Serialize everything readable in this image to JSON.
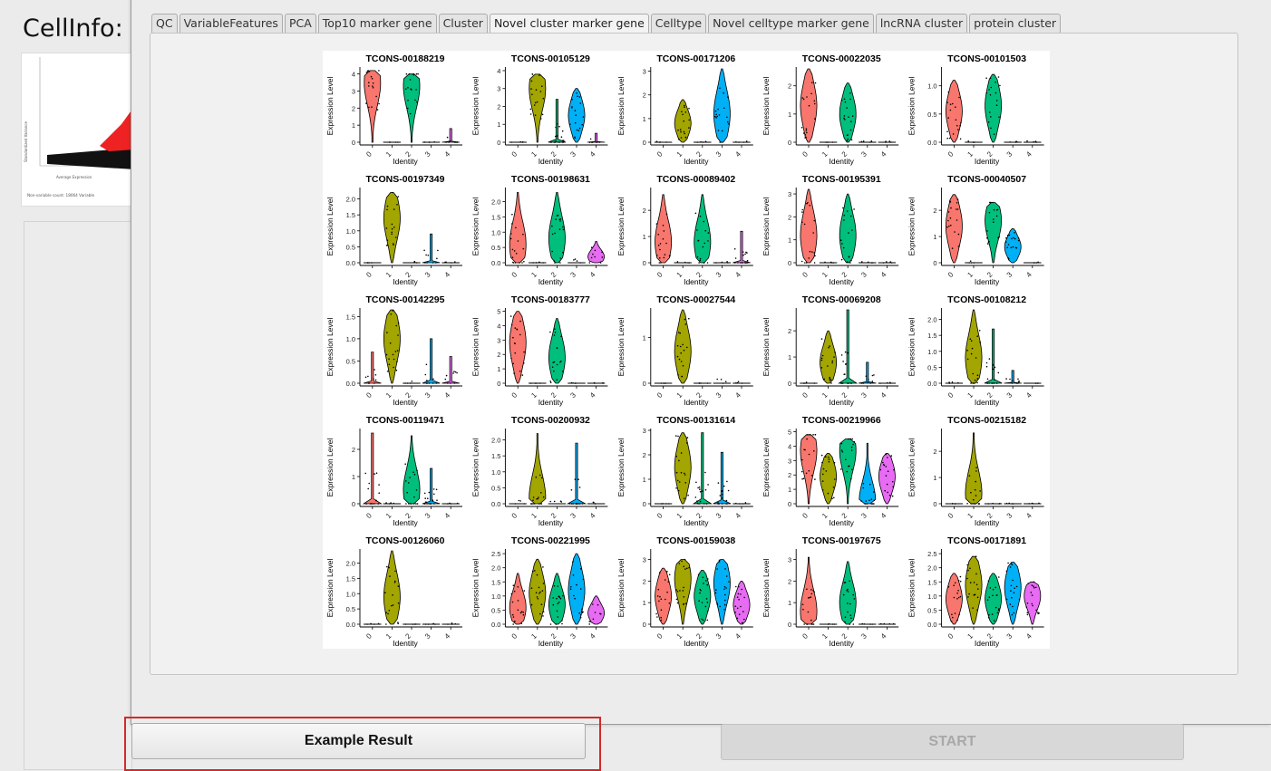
{
  "background": {
    "title": "CellInfo:",
    "thumbnail_caption": "Non-variable count: 18064  Variable"
  },
  "tabs": [
    {
      "label": "QC",
      "active": false
    },
    {
      "label": "VariableFeatures",
      "active": false
    },
    {
      "label": "PCA",
      "active": false
    },
    {
      "label": "Top10 marker gene",
      "active": false
    },
    {
      "label": "Cluster",
      "active": false
    },
    {
      "label": "Novel cluster marker gene",
      "active": true
    },
    {
      "label": "Celltype",
      "active": false
    },
    {
      "label": "Novel celltype marker gene",
      "active": false
    },
    {
      "label": "lncRNA cluster",
      "active": false
    },
    {
      "label": "protein cluster",
      "active": false
    }
  ],
  "buttons": {
    "example": "Example Result",
    "start": "START"
  },
  "colors": {
    "cluster_0": "#F8766D",
    "cluster_1": "#A3A500",
    "cluster_2": "#00BF7D",
    "cluster_3": "#00B0F6",
    "cluster_4": "#E76BF3",
    "highlight": "#d42828"
  },
  "chart_data": {
    "type": "violin",
    "axis_x_label": "Identity",
    "axis_y_label": "Expression Level",
    "identities": [
      "0",
      "1",
      "2",
      "3",
      "4"
    ],
    "panels": [
      {
        "title": "TCONS-00188219",
        "yticks": [
          "0",
          "1",
          "2",
          "3",
          "4"
        ],
        "ymax": 4.3,
        "max": [
          4.2,
          0.1,
          4.0,
          0.1,
          0.8
        ],
        "med": [
          3.5,
          0,
          3.3,
          0,
          0
        ]
      },
      {
        "title": "TCONS-00105129",
        "yticks": [
          "0",
          "1",
          "2",
          "3",
          "4"
        ],
        "ymax": 4.1,
        "max": [
          0.1,
          3.8,
          2.4,
          3.0,
          0.5
        ],
        "med": [
          0,
          3.0,
          0,
          1.5,
          0
        ]
      },
      {
        "title": "TCONS-00171206",
        "yticks": [
          "0",
          "1",
          "2",
          "3"
        ],
        "ymax": 3.1,
        "max": [
          0.1,
          1.8,
          0.1,
          3.1,
          0.1
        ],
        "med": [
          0,
          0.8,
          0,
          1.2,
          0
        ]
      },
      {
        "title": "TCONS-00022035",
        "yticks": [
          "0",
          "1",
          "2"
        ],
        "ymax": 2.6,
        "max": [
          2.6,
          0.1,
          2.1,
          0.1,
          0.1
        ],
        "med": [
          1.3,
          0,
          1.0,
          0,
          0
        ]
      },
      {
        "title": "TCONS-00101503",
        "yticks": [
          "0.0",
          "0.5",
          "1.0"
        ],
        "ymax": 1.3,
        "max": [
          1.1,
          0.2,
          1.2,
          0.05,
          0.05
        ],
        "med": [
          0.55,
          0,
          0.65,
          0,
          0
        ]
      },
      {
        "title": "TCONS-00197349",
        "yticks": [
          "0.0",
          "0.5",
          "1.0",
          "1.5",
          "2.0"
        ],
        "ymax": 2.3,
        "max": [
          0.1,
          2.2,
          0.1,
          0.9,
          0.1
        ],
        "med": [
          0,
          1.4,
          0,
          0,
          0
        ]
      },
      {
        "title": "TCONS-00198631",
        "yticks": [
          "0.0",
          "0.5",
          "1.0",
          "1.5",
          "2.0"
        ],
        "ymax": 2.4,
        "max": [
          2.3,
          0.3,
          2.3,
          0.3,
          0.7
        ],
        "med": [
          0.6,
          0,
          0.8,
          0,
          0.2
        ]
      },
      {
        "title": "TCONS-00089402",
        "yticks": [
          "0",
          "1",
          "2"
        ],
        "ymax": 2.8,
        "max": [
          2.6,
          0.1,
          2.6,
          0.1,
          1.2
        ],
        "med": [
          0.8,
          0,
          0.8,
          0,
          0
        ]
      },
      {
        "title": "TCONS-00195391",
        "yticks": [
          "0",
          "1",
          "2",
          "3"
        ],
        "ymax": 3.2,
        "max": [
          3.2,
          0.1,
          3.0,
          0.1,
          0.1
        ],
        "med": [
          1.2,
          0,
          1.2,
          0,
          0
        ]
      },
      {
        "title": "TCONS-00040507",
        "yticks": [
          "0",
          "1",
          "2"
        ],
        "ymax": 2.8,
        "max": [
          2.6,
          0.2,
          2.3,
          1.3,
          0.1
        ],
        "med": [
          1.4,
          0,
          1.6,
          0.6,
          0
        ]
      },
      {
        "title": "TCONS-00142295",
        "yticks": [
          "0.0",
          "0.5",
          "1.0",
          "1.5"
        ],
        "ymax": 1.65,
        "max": [
          0.7,
          1.65,
          0.1,
          1.0,
          0.6
        ],
        "med": [
          0,
          1.0,
          0,
          0,
          0
        ]
      },
      {
        "title": "TCONS-00183777",
        "yticks": [
          "0",
          "1",
          "2",
          "3",
          "4",
          "5"
        ],
        "ymax": 5.1,
        "max": [
          5.0,
          0.1,
          4.5,
          0.1,
          0.1
        ],
        "med": [
          2.8,
          0,
          1.8,
          0,
          0
        ]
      },
      {
        "title": "TCONS-00027544",
        "yticks": [
          "0",
          "1"
        ],
        "ymax": 1.6,
        "max": [
          0.1,
          1.6,
          0.1,
          0.2,
          0.1
        ],
        "med": [
          0,
          0.7,
          0,
          0,
          0
        ]
      },
      {
        "title": "TCONS-00069208",
        "yticks": [
          "0",
          "1",
          "2"
        ],
        "ymax": 2.8,
        "max": [
          0.3,
          2.0,
          2.8,
          0.8,
          0.1
        ],
        "med": [
          0,
          0.8,
          0,
          0,
          0
        ]
      },
      {
        "title": "TCONS-00108212",
        "yticks": [
          "0.0",
          "0.5",
          "1.0",
          "1.5",
          "2.0"
        ],
        "ymax": 2.3,
        "max": [
          0.1,
          2.3,
          1.7,
          0.4,
          0.1
        ],
        "med": [
          0,
          0.8,
          0,
          0,
          0
        ]
      },
      {
        "title": "TCONS-00119471",
        "yticks": [
          "0",
          "1",
          "2"
        ],
        "ymax": 2.7,
        "max": [
          2.6,
          0.1,
          2.5,
          1.3,
          0.1
        ],
        "med": [
          0.1,
          0,
          0.5,
          0,
          0
        ]
      },
      {
        "title": "TCONS-00200932",
        "yticks": [
          "0.0",
          "0.5",
          "1.0",
          "1.5",
          "2.0"
        ],
        "ymax": 2.3,
        "max": [
          0.3,
          2.2,
          0.3,
          1.9,
          0.1
        ],
        "med": [
          0,
          0.2,
          0,
          0,
          0
        ]
      },
      {
        "title": "TCONS-00131614",
        "yticks": [
          "0",
          "1",
          "2",
          "3"
        ],
        "ymax": 3.0,
        "max": [
          0.1,
          2.9,
          2.9,
          2.1,
          0.1
        ],
        "med": [
          0,
          1.5,
          0,
          0,
          0
        ]
      },
      {
        "title": "TCONS-00219966",
        "yticks": [
          "0",
          "1",
          "2",
          "3",
          "4",
          "5"
        ],
        "ymax": 5.1,
        "max": [
          4.8,
          3.5,
          4.5,
          4.2,
          3.5
        ],
        "med": [
          3.7,
          1.9,
          3.7,
          0.2,
          1.9
        ]
      },
      {
        "title": "TCONS-00215182",
        "yticks": [
          "0",
          "1",
          "2"
        ],
        "ymax": 2.8,
        "max": [
          0.1,
          2.7,
          0.1,
          0.05,
          0.05
        ],
        "med": [
          0,
          0.4,
          0,
          0,
          0
        ]
      },
      {
        "title": "TCONS-00126060",
        "yticks": [
          "0.0",
          "0.5",
          "1.0",
          "1.5",
          "2.0"
        ],
        "ymax": 2.4,
        "max": [
          0.1,
          2.4,
          0.1,
          0.05,
          0.1
        ],
        "med": [
          0,
          0.9,
          0,
          0,
          0
        ]
      },
      {
        "title": "TCONS-00221995",
        "yticks": [
          "0.0",
          "0.5",
          "1.0",
          "1.5",
          "2.0",
          "2.5"
        ],
        "ymax": 2.6,
        "max": [
          1.8,
          2.3,
          1.8,
          2.5,
          1.0
        ],
        "med": [
          0.6,
          1.1,
          0.7,
          1.2,
          0.4
        ]
      },
      {
        "title": "TCONS-00159038",
        "yticks": [
          "0",
          "1",
          "2",
          "3"
        ],
        "ymax": 3.4,
        "max": [
          2.6,
          3.0,
          2.5,
          3.0,
          2.0
        ],
        "med": [
          1.3,
          2.1,
          1.3,
          1.9,
          0.9
        ]
      },
      {
        "title": "TCONS-00197675",
        "yticks": [
          "0",
          "1",
          "2",
          "3"
        ],
        "ymax": 3.4,
        "max": [
          3.1,
          0.1,
          2.9,
          0.05,
          0.05
        ],
        "med": [
          0.6,
          0,
          1.0,
          0,
          0
        ]
      },
      {
        "title": "TCONS-00171891",
        "yticks": [
          "0.0",
          "0.5",
          "1.0",
          "1.5",
          "2.0",
          "2.5"
        ],
        "ymax": 2.6,
        "max": [
          1.8,
          2.4,
          1.8,
          2.2,
          1.5
        ],
        "med": [
          0.9,
          1.4,
          0.9,
          1.3,
          1.0
        ]
      }
    ]
  }
}
